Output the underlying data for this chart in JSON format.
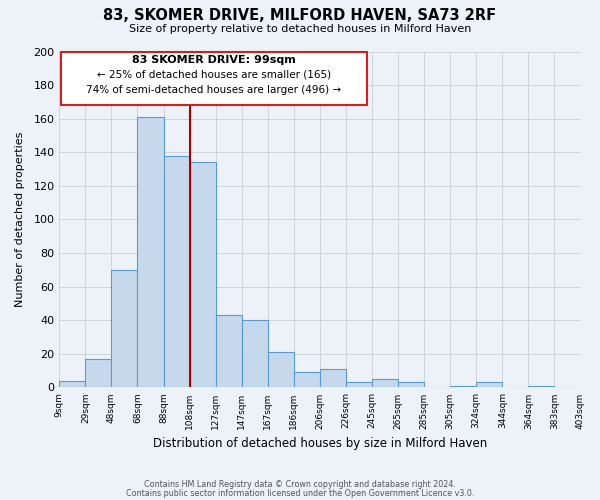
{
  "title": "83, SKOMER DRIVE, MILFORD HAVEN, SA73 2RF",
  "subtitle": "Size of property relative to detached houses in Milford Haven",
  "xlabel": "Distribution of detached houses by size in Milford Haven",
  "ylabel": "Number of detached properties",
  "bar_color": "#c6d9ec",
  "bar_edge_color": "#5b9bd5",
  "grid_color": "#c8d0d8",
  "background_color": "#edf2f8",
  "annotation_box_color": "#ffffff",
  "annotation_border_color": "#cc2222",
  "vline_color": "#aa0000",
  "bin_labels": [
    "9sqm",
    "29sqm",
    "48sqm",
    "68sqm",
    "88sqm",
    "108sqm",
    "127sqm",
    "147sqm",
    "167sqm",
    "186sqm",
    "206sqm",
    "226sqm",
    "245sqm",
    "265sqm",
    "285sqm",
    "305sqm",
    "324sqm",
    "344sqm",
    "364sqm",
    "383sqm",
    "403sqm"
  ],
  "counts": [
    4,
    17,
    70,
    161,
    138,
    134,
    43,
    40,
    21,
    9,
    11,
    3,
    5,
    3,
    0,
    1,
    3,
    0,
    1,
    0
  ],
  "vline_index": 4.5,
  "ylim": [
    0,
    200
  ],
  "yticks": [
    0,
    20,
    40,
    60,
    80,
    100,
    120,
    140,
    160,
    180,
    200
  ],
  "annotation_title": "83 SKOMER DRIVE: 99sqm",
  "annotation_line1": "← 25% of detached houses are smaller (165)",
  "annotation_line2": "74% of semi-detached houses are larger (496) →",
  "footer1": "Contains HM Land Registry data © Crown copyright and database right 2024.",
  "footer2": "Contains public sector information licensed under the Open Government Licence v3.0."
}
